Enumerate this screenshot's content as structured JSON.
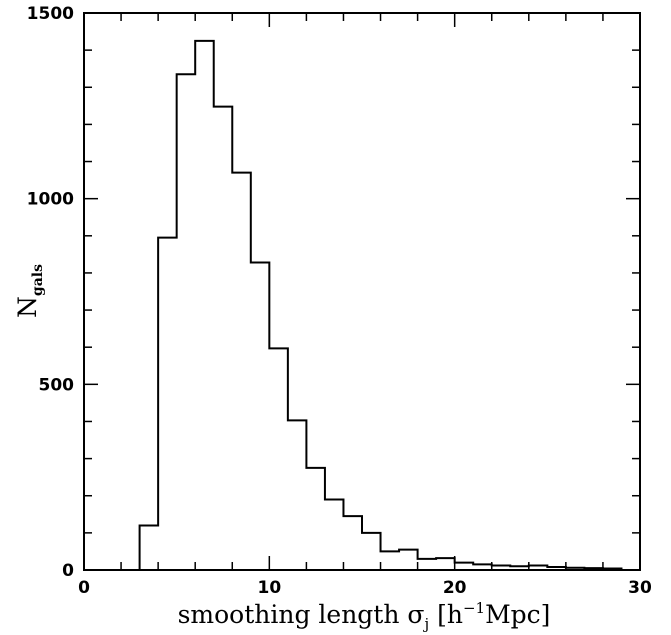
{
  "chart_data": {
    "type": "bar",
    "style": "step-histogram",
    "xlabel": "smoothing length σj [h⁻¹Mpc]",
    "xlabel_parts": {
      "main": "smoothing length σ",
      "sub": "j",
      "unit_open": " [h",
      "unit_sup": "−1",
      "unit_close": "Mpc]"
    },
    "ylabel": "Ngals",
    "ylabel_parts": {
      "main": "N",
      "sub": "gals"
    },
    "xlim": [
      0,
      30
    ],
    "ylim": [
      0,
      1500
    ],
    "x_major_ticks": [
      0,
      10,
      20,
      30
    ],
    "x_tick_labels": [
      "0",
      "10",
      "20",
      "30"
    ],
    "x_minor_step": 2,
    "y_major_ticks": [
      0,
      500,
      1000,
      1500
    ],
    "y_tick_labels": [
      "0",
      "500",
      "1000",
      "1500"
    ],
    "y_minor_step": 100,
    "bin_width": 1,
    "bins": [
      {
        "x0": 3,
        "x1": 4,
        "count": 120
      },
      {
        "x0": 4,
        "x1": 5,
        "count": 895
      },
      {
        "x0": 5,
        "x1": 6,
        "count": 1335
      },
      {
        "x0": 6,
        "x1": 7,
        "count": 1425
      },
      {
        "x0": 7,
        "x1": 8,
        "count": 1248
      },
      {
        "x0": 8,
        "x1": 9,
        "count": 1070
      },
      {
        "x0": 9,
        "x1": 10,
        "count": 828
      },
      {
        "x0": 10,
        "x1": 11,
        "count": 597
      },
      {
        "x0": 11,
        "x1": 12,
        "count": 403
      },
      {
        "x0": 12,
        "x1": 13,
        "count": 275
      },
      {
        "x0": 13,
        "x1": 14,
        "count": 190
      },
      {
        "x0": 14,
        "x1": 15,
        "count": 145
      },
      {
        "x0": 15,
        "x1": 16,
        "count": 100
      },
      {
        "x0": 16,
        "x1": 17,
        "count": 50
      },
      {
        "x0": 17,
        "x1": 18,
        "count": 55
      },
      {
        "x0": 18,
        "x1": 19,
        "count": 30
      },
      {
        "x0": 19,
        "x1": 20,
        "count": 32
      },
      {
        "x0": 20,
        "x1": 21,
        "count": 20
      },
      {
        "x0": 21,
        "x1": 22,
        "count": 15
      },
      {
        "x0": 22,
        "x1": 23,
        "count": 12
      },
      {
        "x0": 23,
        "x1": 24,
        "count": 10
      },
      {
        "x0": 24,
        "x1": 25,
        "count": 12
      },
      {
        "x0": 25,
        "x1": 26,
        "count": 8
      },
      {
        "x0": 26,
        "x1": 27,
        "count": 6
      },
      {
        "x0": 27,
        "x1": 28,
        "count": 5
      },
      {
        "x0": 28,
        "x1": 29,
        "count": 4
      }
    ],
    "grid": false,
    "legend": "none",
    "colors": {
      "line": "#000000",
      "background": "#ffffff"
    }
  }
}
